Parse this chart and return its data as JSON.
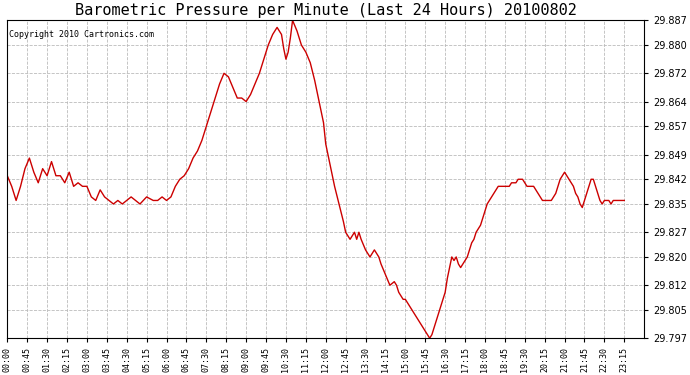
{
  "title": "Barometric Pressure per Minute (Last 24 Hours) 20100802",
  "copyright": "Copyright 2010 Cartronics.com",
  "line_color": "#cc0000",
  "background_color": "#ffffff",
  "grid_color": "#bbbbbb",
  "title_fontsize": 11,
  "ylabel_fontsize": 7,
  "xlabel_fontsize": 6,
  "copyright_fontsize": 6,
  "ylim": [
    29.797,
    29.887
  ],
  "yticks": [
    29.797,
    29.805,
    29.812,
    29.82,
    29.827,
    29.835,
    29.842,
    29.849,
    29.857,
    29.864,
    29.872,
    29.88,
    29.887
  ],
  "xtick_labels": [
    "00:00",
    "00:45",
    "01:30",
    "02:15",
    "03:00",
    "03:45",
    "04:30",
    "05:15",
    "06:00",
    "06:45",
    "07:30",
    "08:15",
    "09:00",
    "09:45",
    "10:30",
    "11:15",
    "12:00",
    "12:45",
    "13:30",
    "14:15",
    "15:00",
    "15:45",
    "16:30",
    "17:15",
    "18:00",
    "18:45",
    "19:30",
    "20:15",
    "21:00",
    "21:45",
    "22:30",
    "23:15"
  ],
  "x_tick_minutes": [
    0,
    45,
    90,
    135,
    180,
    225,
    270,
    315,
    360,
    405,
    450,
    495,
    540,
    585,
    630,
    675,
    720,
    765,
    810,
    855,
    900,
    945,
    990,
    1035,
    1080,
    1125,
    1170,
    1215,
    1260,
    1305,
    1350,
    1395
  ],
  "pressure_data": [
    [
      0,
      29.843
    ],
    [
      10,
      29.84
    ],
    [
      20,
      29.836
    ],
    [
      30,
      29.84
    ],
    [
      40,
      29.845
    ],
    [
      50,
      29.848
    ],
    [
      60,
      29.844
    ],
    [
      70,
      29.841
    ],
    [
      80,
      29.845
    ],
    [
      90,
      29.843
    ],
    [
      100,
      29.847
    ],
    [
      110,
      29.843
    ],
    [
      120,
      29.843
    ],
    [
      130,
      29.841
    ],
    [
      140,
      29.844
    ],
    [
      150,
      29.84
    ],
    [
      160,
      29.841
    ],
    [
      170,
      29.84
    ],
    [
      180,
      29.84
    ],
    [
      190,
      29.837
    ],
    [
      200,
      29.836
    ],
    [
      210,
      29.839
    ],
    [
      220,
      29.837
    ],
    [
      230,
      29.836
    ],
    [
      240,
      29.835
    ],
    [
      250,
      29.836
    ],
    [
      260,
      29.835
    ],
    [
      270,
      29.836
    ],
    [
      280,
      29.837
    ],
    [
      290,
      29.836
    ],
    [
      300,
      29.835
    ],
    [
      315,
      29.837
    ],
    [
      330,
      29.836
    ],
    [
      340,
      29.836
    ],
    [
      350,
      29.837
    ],
    [
      360,
      29.836
    ],
    [
      370,
      29.837
    ],
    [
      380,
      29.84
    ],
    [
      390,
      29.842
    ],
    [
      400,
      29.843
    ],
    [
      410,
      29.845
    ],
    [
      420,
      29.848
    ],
    [
      430,
      29.85
    ],
    [
      440,
      29.853
    ],
    [
      450,
      29.857
    ],
    [
      460,
      29.861
    ],
    [
      470,
      29.865
    ],
    [
      480,
      29.869
    ],
    [
      490,
      29.872
    ],
    [
      500,
      29.871
    ],
    [
      510,
      29.868
    ],
    [
      520,
      29.865
    ],
    [
      530,
      29.865
    ],
    [
      540,
      29.864
    ],
    [
      550,
      29.866
    ],
    [
      560,
      29.869
    ],
    [
      570,
      29.872
    ],
    [
      580,
      29.876
    ],
    [
      590,
      29.88
    ],
    [
      600,
      29.883
    ],
    [
      610,
      29.885
    ],
    [
      620,
      29.883
    ],
    [
      625,
      29.879
    ],
    [
      630,
      29.876
    ],
    [
      635,
      29.878
    ],
    [
      640,
      29.882
    ],
    [
      645,
      29.887
    ],
    [
      655,
      29.884
    ],
    [
      665,
      29.88
    ],
    [
      675,
      29.878
    ],
    [
      685,
      29.875
    ],
    [
      695,
      29.87
    ],
    [
      705,
      29.864
    ],
    [
      715,
      29.858
    ],
    [
      720,
      29.852
    ],
    [
      730,
      29.846
    ],
    [
      740,
      29.84
    ],
    [
      750,
      29.835
    ],
    [
      760,
      29.83
    ],
    [
      765,
      29.827
    ],
    [
      775,
      29.825
    ],
    [
      785,
      29.827
    ],
    [
      790,
      29.825
    ],
    [
      795,
      29.827
    ],
    [
      800,
      29.825
    ],
    [
      810,
      29.822
    ],
    [
      820,
      29.82
    ],
    [
      830,
      29.822
    ],
    [
      840,
      29.82
    ],
    [
      845,
      29.818
    ],
    [
      855,
      29.815
    ],
    [
      865,
      29.812
    ],
    [
      875,
      29.813
    ],
    [
      880,
      29.812
    ],
    [
      885,
      29.81
    ],
    [
      890,
      29.809
    ],
    [
      895,
      29.808
    ],
    [
      900,
      29.808
    ],
    [
      905,
      29.807
    ],
    [
      910,
      29.806
    ],
    [
      915,
      29.805
    ],
    [
      920,
      29.804
    ],
    [
      925,
      29.803
    ],
    [
      930,
      29.802
    ],
    [
      935,
      29.801
    ],
    [
      940,
      29.8
    ],
    [
      945,
      29.799
    ],
    [
      950,
      29.798
    ],
    [
      955,
      29.797
    ],
    [
      960,
      29.798
    ],
    [
      965,
      29.8
    ],
    [
      970,
      29.802
    ],
    [
      975,
      29.804
    ],
    [
      980,
      29.806
    ],
    [
      985,
      29.808
    ],
    [
      990,
      29.81
    ],
    [
      995,
      29.814
    ],
    [
      1000,
      29.817
    ],
    [
      1005,
      29.82
    ],
    [
      1010,
      29.819
    ],
    [
      1015,
      29.82
    ],
    [
      1020,
      29.818
    ],
    [
      1025,
      29.817
    ],
    [
      1030,
      29.818
    ],
    [
      1035,
      29.819
    ],
    [
      1040,
      29.82
    ],
    [
      1045,
      29.822
    ],
    [
      1050,
      29.824
    ],
    [
      1055,
      29.825
    ],
    [
      1060,
      29.827
    ],
    [
      1065,
      29.828
    ],
    [
      1070,
      29.829
    ],
    [
      1075,
      29.831
    ],
    [
      1080,
      29.833
    ],
    [
      1085,
      29.835
    ],
    [
      1090,
      29.836
    ],
    [
      1095,
      29.837
    ],
    [
      1100,
      29.838
    ],
    [
      1105,
      29.839
    ],
    [
      1110,
      29.84
    ],
    [
      1115,
      29.84
    ],
    [
      1120,
      29.84
    ],
    [
      1125,
      29.84
    ],
    [
      1130,
      29.84
    ],
    [
      1135,
      29.84
    ],
    [
      1140,
      29.841
    ],
    [
      1145,
      29.841
    ],
    [
      1150,
      29.841
    ],
    [
      1155,
      29.842
    ],
    [
      1160,
      29.842
    ],
    [
      1165,
      29.842
    ],
    [
      1170,
      29.841
    ],
    [
      1175,
      29.84
    ],
    [
      1180,
      29.84
    ],
    [
      1185,
      29.84
    ],
    [
      1190,
      29.84
    ],
    [
      1195,
      29.839
    ],
    [
      1200,
      29.838
    ],
    [
      1205,
      29.837
    ],
    [
      1210,
      29.836
    ],
    [
      1215,
      29.836
    ],
    [
      1220,
      29.836
    ],
    [
      1225,
      29.836
    ],
    [
      1230,
      29.836
    ],
    [
      1235,
      29.837
    ],
    [
      1240,
      29.838
    ],
    [
      1245,
      29.84
    ],
    [
      1250,
      29.842
    ],
    [
      1255,
      29.843
    ],
    [
      1260,
      29.844
    ],
    [
      1265,
      29.843
    ],
    [
      1270,
      29.842
    ],
    [
      1275,
      29.841
    ],
    [
      1280,
      29.84
    ],
    [
      1285,
      29.838
    ],
    [
      1290,
      29.837
    ],
    [
      1295,
      29.835
    ],
    [
      1300,
      29.834
    ],
    [
      1305,
      29.836
    ],
    [
      1310,
      29.838
    ],
    [
      1315,
      29.84
    ],
    [
      1320,
      29.842
    ],
    [
      1325,
      29.842
    ],
    [
      1330,
      29.84
    ],
    [
      1335,
      29.838
    ],
    [
      1340,
      29.836
    ],
    [
      1345,
      29.835
    ],
    [
      1350,
      29.836
    ],
    [
      1355,
      29.836
    ],
    [
      1360,
      29.836
    ],
    [
      1365,
      29.835
    ],
    [
      1370,
      29.836
    ],
    [
      1375,
      29.836
    ],
    [
      1380,
      29.836
    ],
    [
      1385,
      29.836
    ],
    [
      1390,
      29.836
    ],
    [
      1395,
      29.836
    ]
  ]
}
